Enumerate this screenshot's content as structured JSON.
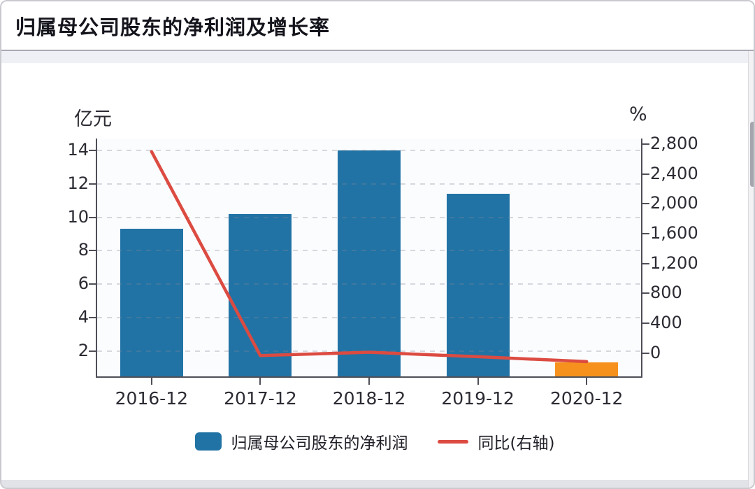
{
  "header": {
    "title": "归属母公司股东的净利润及增长率"
  },
  "chart_data": {
    "type": "bar+line",
    "title": "归属母公司股东的净利润及增长率",
    "categories": [
      "2016-12",
      "2017-12",
      "2018-12",
      "2019-12",
      "2020-12"
    ],
    "series": [
      {
        "name": "归属母公司股东的净利润",
        "type": "bar",
        "axis": "left",
        "unit": "亿元",
        "values": [
          9.3,
          10.2,
          14.0,
          11.4,
          1.3
        ],
        "bar_colors": [
          "#2173a5",
          "#2173a5",
          "#2173a5",
          "#2173a5",
          "#f6911d"
        ]
      },
      {
        "name": "同比(右轴)",
        "type": "line",
        "axis": "right",
        "unit": "%",
        "values": [
          2700,
          -35,
          10,
          -50,
          -115
        ],
        "color": "#dc4b41"
      }
    ],
    "left_axis": {
      "unit_label": "亿元",
      "tick_values": [
        2,
        4,
        6,
        8,
        10,
        12,
        14
      ],
      "tick_labels": [
        "2",
        "4",
        "6",
        "8",
        "10",
        "12",
        "14"
      ],
      "range": [
        0.43,
        14.72
      ],
      "grid": "dashed"
    },
    "right_axis": {
      "unit_label": "%",
      "tick_values": [
        0,
        400,
        800,
        1200,
        1600,
        2000,
        2400,
        2800
      ],
      "tick_labels": [
        "0",
        "400",
        "800",
        "1,200",
        "1,600",
        "2,000",
        "2,400",
        "2,800"
      ],
      "range": [
        -322,
        2880
      ]
    },
    "legend": [
      {
        "label": "归属母公司股东的净利润",
        "swatch": "bar",
        "color": "#2173a5"
      },
      {
        "label": "同比(右轴)",
        "swatch": "line",
        "color": "#dc4b41"
      }
    ],
    "legend_position": "bottom-center"
  },
  "colors": {
    "bar_blue": "#2173a5",
    "bar_orange": "#f6911d",
    "line_red": "#dc4b41",
    "axis": "#4f4f58",
    "grid": "#d7d8de",
    "tick_text": "#2b2b33",
    "title_text": "#14141c"
  }
}
